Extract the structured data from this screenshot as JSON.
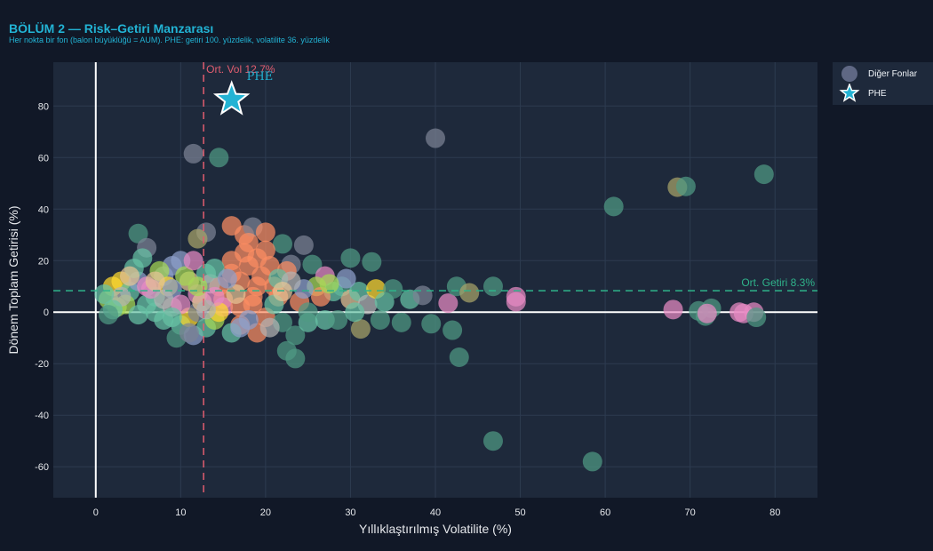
{
  "chart_data": {
    "type": "scatter",
    "title": "BÖLÜM 2 — Risk–Getiri Manzarası",
    "subtitle": "Her nokta bir fon (balon büyüklüğü = AUM). PHE: getiri 100. yüzdelik, volatilite 36. yüzdelik",
    "xlabel": "Yıllıklaştırılmış Volatilite (%)",
    "ylabel": "Dönem Toplam Getirisi (%)",
    "xlim": [
      -5,
      85
    ],
    "ylim": [
      -72,
      97
    ],
    "x_ticks": [
      0,
      10,
      20,
      30,
      40,
      50,
      60,
      70,
      80
    ],
    "y_ticks": [
      -60,
      -40,
      -20,
      0,
      20,
      40,
      60,
      80
    ],
    "mean_vol": 12.7,
    "mean_vol_label": "Ort. Vol 12.7%",
    "mean_return": 8.3,
    "mean_return_label": "Ort. Getiri 8.3%",
    "legend": {
      "position": "top-right",
      "other_label": "Diğer Fonlar",
      "phe_label": "PHE"
    },
    "phe": {
      "name": "PHE",
      "x": 16.0,
      "y": 82.5,
      "color": "#22b3d4"
    },
    "series": [
      {
        "name": "Diğer Fonlar",
        "points": [
          [
            11.5,
            61.5,
            "#7c8294"
          ],
          [
            14.5,
            60,
            "#4f9a84"
          ],
          [
            40,
            67.5,
            "#7c8294"
          ],
          [
            78.7,
            53.5,
            "#4f9a84"
          ],
          [
            61,
            41,
            "#4f9a84"
          ],
          [
            68.5,
            48.5,
            "#a8a36a"
          ],
          [
            69.5,
            48.8,
            "#4f9a84"
          ],
          [
            5,
            30.5,
            "#4f9a84"
          ],
          [
            6,
            25,
            "#7c8294"
          ],
          [
            13,
            31,
            "#7c8294"
          ],
          [
            16,
            33.5,
            "#fc8d62"
          ],
          [
            17.5,
            30,
            "#fc8d62"
          ],
          [
            18.5,
            33,
            "#7c8294"
          ],
          [
            20,
            31,
            "#fc8d62"
          ],
          [
            24.5,
            26,
            "#7c8294"
          ],
          [
            12,
            28.5,
            "#a8a36a"
          ],
          [
            22,
            26.5,
            "#4f9a84"
          ],
          [
            25.5,
            18.5,
            "#4f9a84"
          ],
          [
            30,
            21,
            "#4f9a84"
          ],
          [
            32.5,
            19.5,
            "#4f9a84"
          ],
          [
            23,
            18.5,
            "#7c8294"
          ],
          [
            27,
            14,
            "#e78ac3"
          ],
          [
            19,
            21,
            "#fc8d62"
          ],
          [
            18,
            18,
            "#fc8d62"
          ],
          [
            20,
            24,
            "#fc8d62"
          ],
          [
            17,
            12,
            "#fc8d62"
          ],
          [
            15,
            5,
            "#fc8d62"
          ],
          [
            21,
            10,
            "#fc8d62"
          ],
          [
            19.5,
            14,
            "#fc8d62"
          ],
          [
            18,
            27,
            "#fc8d62"
          ],
          [
            16,
            20,
            "#fc8d62"
          ],
          [
            17.5,
            23,
            "#fc8d62"
          ],
          [
            14.5,
            10,
            "#fc8d62"
          ],
          [
            21.5,
            6,
            "#fc8d62"
          ],
          [
            20,
            -2,
            "#fc8d62"
          ],
          [
            19,
            -8,
            "#fc8d62"
          ],
          [
            17,
            -5,
            "#fc8d62"
          ],
          [
            16,
            15,
            "#fc8d62"
          ],
          [
            22.5,
            16,
            "#fc8d62"
          ],
          [
            18.5,
            3,
            "#fc8d62"
          ],
          [
            2,
            10,
            "#ffd92f"
          ],
          [
            3,
            12,
            "#ffd92f"
          ],
          [
            1.5,
            5,
            "#a6d854"
          ],
          [
            2.5,
            2,
            "#a6d854"
          ],
          [
            4,
            8,
            "#66c2a5"
          ],
          [
            3.5,
            3,
            "#a6d854"
          ],
          [
            5,
            12,
            "#8da0cb"
          ],
          [
            6,
            10,
            "#e78ac3"
          ],
          [
            7,
            6,
            "#66c2a5"
          ],
          [
            8,
            14,
            "#8da0cb"
          ],
          [
            9,
            18,
            "#8da0cb"
          ],
          [
            10,
            20,
            "#8da0cb"
          ],
          [
            11,
            12,
            "#e5c494"
          ],
          [
            12,
            7,
            "#e78ac3"
          ],
          [
            13,
            15,
            "#66c2a5"
          ],
          [
            6,
            3,
            "#66c2a5"
          ],
          [
            7,
            0,
            "#66c2a5"
          ],
          [
            5,
            -1,
            "#66c2a5"
          ],
          [
            8,
            -3,
            "#66c2a5"
          ],
          [
            9,
            2,
            "#b3b3b3"
          ],
          [
            10,
            -5,
            "#66c2a5"
          ],
          [
            11,
            -2,
            "#ffd92f"
          ],
          [
            12,
            0,
            "#7c8294"
          ],
          [
            9.5,
            -10,
            "#4f9a84"
          ],
          [
            11.5,
            -9,
            "#8da0cb"
          ],
          [
            13,
            -6,
            "#66c2a5"
          ],
          [
            14,
            -3,
            "#a6d854"
          ],
          [
            15,
            2,
            "#e78ac3"
          ],
          [
            16,
            -8,
            "#66c2a5"
          ],
          [
            17,
            -6,
            "#8da0cb"
          ],
          [
            13.5,
            11,
            "#b3b3b3"
          ],
          [
            14,
            17,
            "#66c2a5"
          ],
          [
            4.5,
            17,
            "#66c2a5"
          ],
          [
            5.5,
            21,
            "#66c2a5"
          ],
          [
            7.5,
            16,
            "#a6d854"
          ],
          [
            8.5,
            10,
            "#ffd92f"
          ],
          [
            3,
            6,
            "#b3b3b3"
          ],
          [
            4,
            14,
            "#e5c494"
          ],
          [
            2,
            1,
            "#66c2a5"
          ],
          [
            1,
            7,
            "#66c2a5"
          ],
          [
            1.5,
            -1,
            "#4f9a84"
          ],
          [
            6.5,
            9,
            "#e78ac3"
          ],
          [
            10.5,
            14,
            "#a6d854"
          ],
          [
            12.5,
            4,
            "#e5c494"
          ],
          [
            11,
            -8,
            "#7c8294"
          ],
          [
            9,
            9,
            "#8da0cb"
          ],
          [
            8,
            5,
            "#b3b3b3"
          ],
          [
            7,
            12,
            "#e5c494"
          ],
          [
            14.5,
            0,
            "#ffd92f"
          ],
          [
            11.5,
            20,
            "#e78ac3"
          ],
          [
            22,
            -4,
            "#4f9a84"
          ],
          [
            22.5,
            -15,
            "#4f9a84"
          ],
          [
            23.5,
            -18,
            "#4f9a84"
          ],
          [
            23.5,
            -9,
            "#4f9a84"
          ],
          [
            25,
            -4,
            "#66c2a5"
          ],
          [
            24,
            4,
            "#fc8d62"
          ],
          [
            26,
            10,
            "#a6d854"
          ],
          [
            25,
            0,
            "#4f9a84"
          ],
          [
            27,
            -3,
            "#66c2a5"
          ],
          [
            28.5,
            -3,
            "#4f9a84"
          ],
          [
            29,
            10,
            "#4f9a84"
          ],
          [
            30,
            5,
            "#e5c494"
          ],
          [
            31,
            8,
            "#66c2a5"
          ],
          [
            32,
            3,
            "#b3b3b3"
          ],
          [
            33,
            9,
            "#ffd92f"
          ],
          [
            31.2,
            -6.5,
            "#a8a36a"
          ],
          [
            30.5,
            0,
            "#66c2a5"
          ],
          [
            33.5,
            -3,
            "#4f9a84"
          ],
          [
            28,
            8,
            "#66c2a5"
          ],
          [
            26.5,
            6,
            "#fc8d62"
          ],
          [
            21,
            3,
            "#66c2a5"
          ],
          [
            20.5,
            -6,
            "#b3b3b3"
          ],
          [
            24.5,
            9,
            "#8da0cb"
          ],
          [
            29.5,
            13,
            "#8da0cb"
          ],
          [
            27.5,
            11,
            "#a6d854"
          ],
          [
            34,
            4,
            "#66c2a5"
          ],
          [
            35,
            9,
            "#4f9a84"
          ],
          [
            36,
            -4,
            "#4f9a84"
          ],
          [
            37,
            5,
            "#66c2a5"
          ],
          [
            38.5,
            6.5,
            "#7c8294"
          ],
          [
            39.5,
            -4.5,
            "#4f9a84"
          ],
          [
            41.5,
            3.5,
            "#e78ac3"
          ],
          [
            42,
            -7,
            "#4f9a84"
          ],
          [
            42.5,
            10,
            "#4f9a84"
          ],
          [
            44,
            7.5,
            "#a8a36a"
          ],
          [
            42.8,
            -17.5,
            "#4f9a84"
          ],
          [
            46.8,
            10,
            "#4f9a84"
          ],
          [
            49.5,
            6,
            "#e78ac3"
          ],
          [
            49.5,
            4,
            "#e78ac3"
          ],
          [
            46.8,
            -50,
            "#4f9a84"
          ],
          [
            58.5,
            -58,
            "#4f9a84"
          ],
          [
            68,
            1,
            "#e78ac3"
          ],
          [
            71,
            0.5,
            "#4f9a84"
          ],
          [
            71.8,
            -1.5,
            "#4f9a84"
          ],
          [
            72.5,
            1.5,
            "#4f9a84"
          ],
          [
            72,
            -0.5,
            "#e78ac3"
          ],
          [
            75.8,
            0,
            "#e78ac3"
          ],
          [
            76.3,
            -0.5,
            "#e78ac3"
          ],
          [
            77.5,
            0,
            "#e78ac3"
          ],
          [
            77.8,
            -2,
            "#4f9a84"
          ],
          [
            18.5,
            6,
            "#fc8d62"
          ],
          [
            19,
            10,
            "#fc8d62"
          ],
          [
            20.5,
            18,
            "#fc8d62"
          ],
          [
            17,
            2,
            "#fc8d62"
          ],
          [
            16.5,
            7,
            "#e5c494"
          ],
          [
            15.5,
            13,
            "#8da0cb"
          ],
          [
            14,
            6,
            "#e78ac3"
          ],
          [
            13,
            1,
            "#b3b3b3"
          ],
          [
            12,
            10,
            "#a6d854"
          ],
          [
            10,
            3,
            "#e78ac3"
          ],
          [
            9,
            -2,
            "#66c2a5"
          ],
          [
            18,
            -3,
            "#8da0cb"
          ],
          [
            21.5,
            13,
            "#66c2a5"
          ],
          [
            23,
            12,
            "#b3b3b3"
          ],
          [
            22,
            8,
            "#e5c494"
          ]
        ]
      }
    ]
  }
}
